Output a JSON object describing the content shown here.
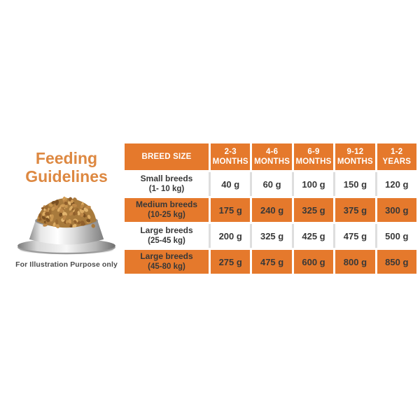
{
  "colors": {
    "table_orange": "#E5792C",
    "title_orange": "#DD8841",
    "text_dark": "#383838",
    "separator_gray": "#DEDEDE"
  },
  "left_panel": {
    "title_line1": "Feeding",
    "title_line2": "Guidelines",
    "bowl_icon": "dog-food-bowl-icon",
    "caption": "For Illustration Purpose only"
  },
  "table": {
    "header": [
      "BREED SIZE",
      "2-3\nMONTHS",
      "4-6\nMONTHS",
      "6-9\nMONTHS",
      "9-12\nMONTHS",
      "1-2\nYEARS"
    ],
    "rows": [
      {
        "breed": "Small breeds",
        "weight": "(1- 10 kg)",
        "values": [
          "40 g",
          "60 g",
          "100 g",
          "150 g",
          "120 g"
        ]
      },
      {
        "breed": "Medium breeds",
        "weight": "(10-25 kg)",
        "values": [
          "175 g",
          "240 g",
          "325 g",
          "375 g",
          "300 g"
        ]
      },
      {
        "breed": "Large breeds",
        "weight": "(25-45 kg)",
        "values": [
          "200 g",
          "325 g",
          "425 g",
          "475 g",
          "500 g"
        ]
      },
      {
        "breed": "Large breeds",
        "weight": "(45-80 kg)",
        "values": [
          "275 g",
          "475 g",
          "600 g",
          "800 g",
          "850 g"
        ]
      }
    ]
  },
  "chart_data": {
    "type": "table",
    "title": "Feeding Guidelines",
    "columns": [
      "BREED SIZE",
      "2-3 MONTHS",
      "4-6 MONTHS",
      "6-9 MONTHS",
      "9-12 MONTHS",
      "1-2 YEARS"
    ],
    "unit": "g",
    "rows": [
      {
        "breed": "Small breeds (1- 10 kg)",
        "values_g": [
          40,
          60,
          100,
          150,
          120
        ]
      },
      {
        "breed": "Medium breeds (10-25 kg)",
        "values_g": [
          175,
          240,
          325,
          375,
          300
        ]
      },
      {
        "breed": "Large breeds (25-45 kg)",
        "values_g": [
          200,
          325,
          425,
          475,
          500
        ]
      },
      {
        "breed": "Large breeds (45-80 kg)",
        "values_g": [
          275,
          475,
          600,
          800,
          850
        ]
      }
    ],
    "note": "For Illustration Purpose only"
  }
}
